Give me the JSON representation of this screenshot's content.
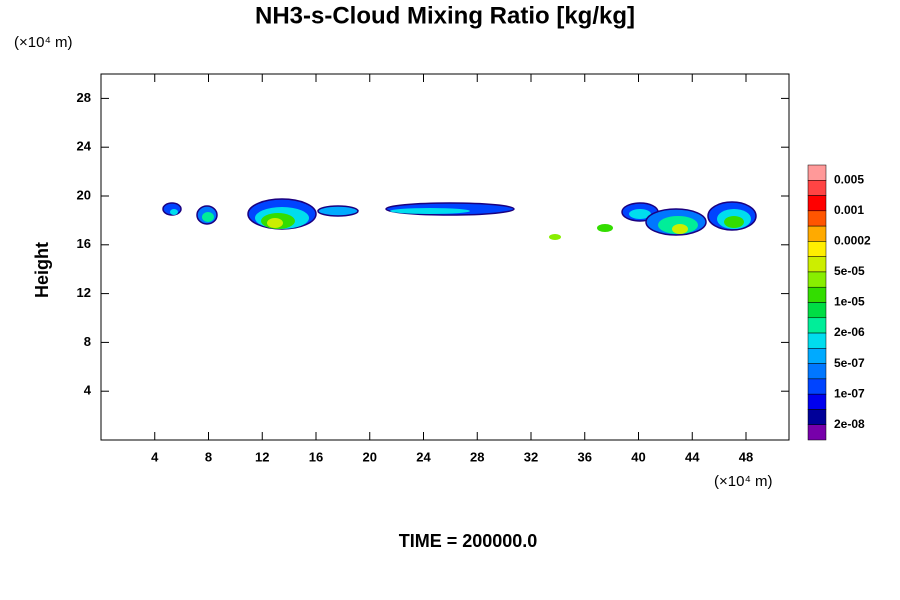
{
  "chart_data": {
    "type": "contour",
    "title": "NH3-s-Cloud Mixing Ratio [kg/kg]",
    "y_unit": "(×10⁴ m)",
    "x_unit": "(×10⁴ m)",
    "ylabel": "Height",
    "footer": "TIME = 200000.0",
    "xlim": [
      0,
      51.2
    ],
    "ylim": [
      0,
      30
    ],
    "xticks": [
      4,
      8,
      12,
      16,
      20,
      24,
      28,
      32,
      36,
      40,
      44,
      48
    ],
    "yticks": [
      4,
      8,
      12,
      16,
      20,
      24,
      28
    ],
    "colorbar": {
      "colors": [
        "#ff9999",
        "#ff4444",
        "#ff0000",
        "#ff5500",
        "#ffaa00",
        "#ffee00",
        "#ccee00",
        "#88ee00",
        "#33dd00",
        "#00dd44",
        "#00ee99",
        "#00ddee",
        "#00aaff",
        "#0077ff",
        "#0044ff",
        "#0000ee",
        "#000099",
        "#7700aa"
      ],
      "labels": [
        "0.005",
        "0.001",
        "0.0002",
        "5e-05",
        "1e-05",
        "2e-06",
        "5e-07",
        "1e-07",
        "2e-08"
      ]
    }
  }
}
